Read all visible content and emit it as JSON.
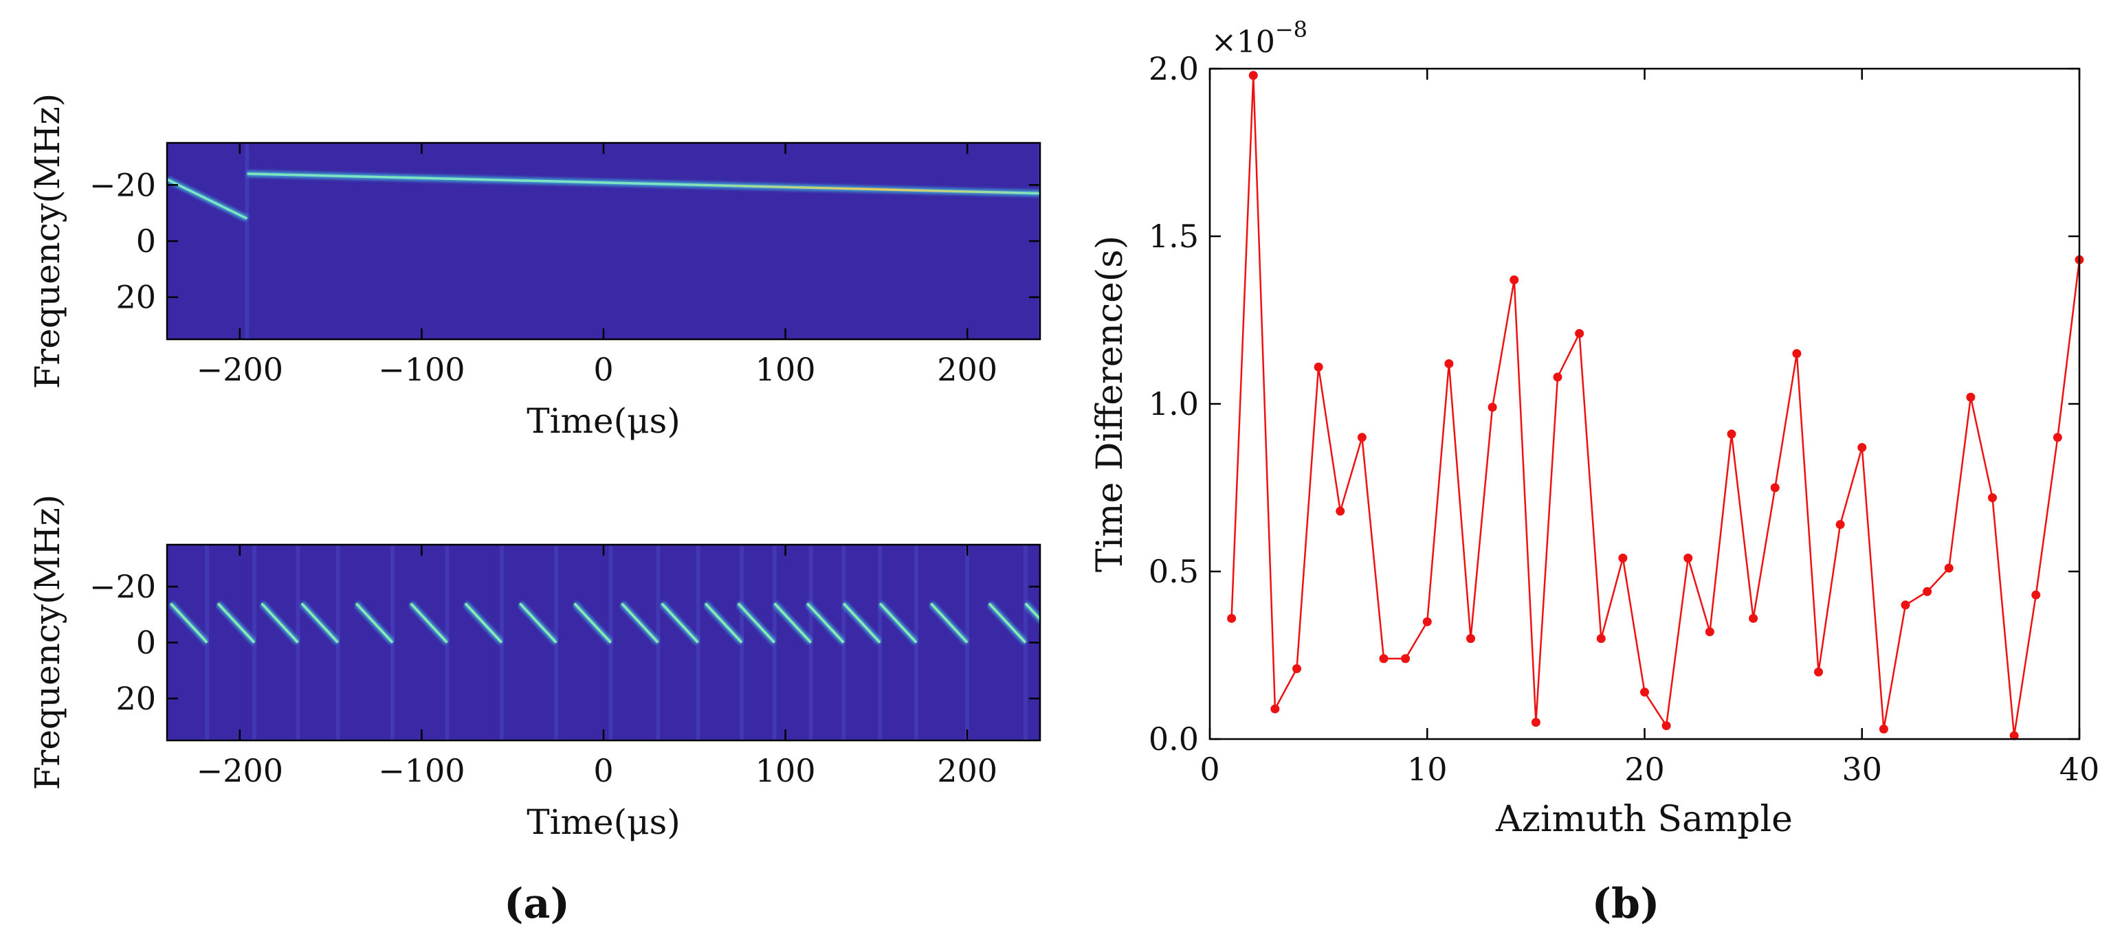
{
  "chart_data": [
    {
      "type": "heatmap",
      "panel": "a-top",
      "xlabel": "Time(μs)",
      "ylabel": "Frequency(MHz)",
      "xlim": [
        -240,
        240
      ],
      "ylim": [
        -35,
        35
      ],
      "y_inverted": true,
      "xticks": [
        -200,
        -100,
        0,
        100,
        200
      ],
      "xtick_labels": [
        "−200",
        "−100",
        "0",
        "100",
        "200"
      ],
      "yticks": [
        -20,
        0,
        20
      ],
      "ytick_labels": [
        "−20",
        "0",
        "20"
      ],
      "colors": {
        "background": "#3a28a5",
        "chirp": "#7ee3c0",
        "chirp_warm": "#e8c95a"
      },
      "segments": [
        {
          "t0": -240,
          "f0": -22,
          "t1": -196,
          "f1": -8
        },
        {
          "t0": -196,
          "f0": -24,
          "t1": 240,
          "f1": -17
        }
      ]
    },
    {
      "type": "heatmap",
      "panel": "a-bottom",
      "xlabel": "Time(μs)",
      "ylabel": "Frequency(MHz)",
      "xlim": [
        -240,
        240
      ],
      "ylim": [
        -35,
        35
      ],
      "y_inverted": true,
      "xticks": [
        -200,
        -100,
        0,
        100,
        200
      ],
      "xtick_labels": [
        "−200",
        "−100",
        "0",
        "100",
        "200"
      ],
      "yticks": [
        -20,
        0,
        20
      ],
      "ytick_labels": [
        "−20",
        "0",
        "20"
      ],
      "colors": {
        "background": "#3a28a5",
        "chirp": "#8ce8b0"
      },
      "chirp": {
        "duration": 20,
        "f_start": -14,
        "f_end": 0
      },
      "chirp_starts": [
        -238,
        -212,
        -188,
        -166,
        -136,
        -106,
        -76,
        -46,
        -16,
        10,
        32,
        56,
        74,
        94,
        112,
        132,
        152,
        180,
        212,
        232
      ]
    },
    {
      "type": "line",
      "panel": "b",
      "xlabel": "Azimuth Sample",
      "ylabel": "Time Difference(s)",
      "scale_label": "×10",
      "scale_exponent": "−8",
      "xlim": [
        0,
        40
      ],
      "ylim": [
        0,
        2.0
      ],
      "xticks": [
        0,
        10,
        20,
        30,
        40
      ],
      "xtick_labels": [
        "0",
        "10",
        "20",
        "30",
        "40"
      ],
      "yticks": [
        0,
        0.5,
        1.0,
        1.5,
        2.0
      ],
      "ytick_labels": [
        "0.0",
        "0.5",
        "1.0",
        "1.5",
        "2.0"
      ],
      "color": "#ee1111",
      "series": [
        {
          "name": "Time Difference",
          "x": [
            1,
            2,
            3,
            4,
            5,
            6,
            7,
            8,
            9,
            10,
            11,
            12,
            13,
            14,
            15,
            16,
            17,
            18,
            19,
            20,
            21,
            22,
            23,
            24,
            25,
            26,
            27,
            28,
            29,
            30,
            31,
            32,
            33,
            34,
            35,
            36,
            37,
            38,
            39,
            40
          ],
          "values": [
            0.36,
            1.98,
            0.09,
            0.21,
            1.11,
            0.68,
            0.9,
            0.24,
            0.24,
            0.35,
            1.12,
            0.3,
            0.99,
            1.37,
            0.05,
            1.08,
            1.21,
            0.3,
            0.54,
            0.14,
            0.04,
            0.54,
            0.32,
            0.91,
            0.36,
            0.75,
            1.15,
            0.2,
            0.64,
            0.87,
            0.03,
            0.4,
            0.44,
            0.51,
            1.02,
            0.72,
            0.01,
            0.43,
            0.9,
            1.43
          ]
        }
      ]
    }
  ],
  "captions": {
    "a": "(a)",
    "b": "(b)"
  }
}
